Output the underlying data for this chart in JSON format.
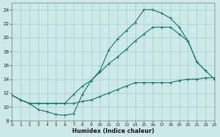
{
  "xlabel": "Humidex (Indice chaleur)",
  "background_color": "#cce8e8",
  "grid_color": "#aad4d4",
  "line_color": "#1a7a6e",
  "curve1_x": [
    0,
    1,
    2,
    3,
    4,
    5,
    6,
    7,
    8,
    9,
    10,
    11,
    12,
    13,
    14,
    15,
    16,
    17,
    18,
    19,
    20,
    21,
    22,
    23
  ],
  "curve1_y": [
    11.7,
    11.0,
    10.5,
    9.6,
    9.3,
    8.9,
    8.8,
    9.0,
    11.8,
    13.8,
    15.2,
    18.2,
    19.8,
    21.0,
    22.2,
    24.0,
    24.0,
    23.5,
    22.8,
    21.5,
    19.5,
    16.5,
    15.2,
    14.0
  ],
  "curve2_x": [
    0,
    1,
    2,
    3,
    4,
    5,
    6,
    7,
    8,
    9,
    10,
    11,
    12,
    13,
    14,
    15,
    16,
    17,
    18,
    19,
    20,
    21,
    22
  ],
  "curve2_y": [
    11.7,
    11.0,
    10.5,
    10.5,
    10.5,
    10.5,
    10.5,
    11.8,
    13.0,
    13.8,
    15.0,
    16.2,
    17.2,
    18.3,
    19.5,
    20.5,
    21.5,
    21.5,
    21.5,
    20.5,
    19.5,
    16.5,
    15.2
  ],
  "curve3_x": [
    0,
    1,
    2,
    3,
    4,
    5,
    6,
    7,
    8,
    9,
    10,
    11,
    12,
    13,
    14,
    15,
    16,
    17,
    18,
    19,
    20,
    21,
    22,
    23
  ],
  "curve3_y": [
    11.7,
    11.0,
    10.5,
    10.5,
    10.5,
    10.5,
    10.5,
    10.5,
    10.8,
    11.0,
    11.5,
    12.0,
    12.5,
    13.0,
    13.5,
    13.5,
    13.5,
    13.5,
    13.5,
    13.8,
    14.0,
    14.0,
    14.2,
    14.2
  ],
  "xlim": [
    0,
    23
  ],
  "ylim": [
    8,
    25
  ],
  "yticks": [
    8,
    10,
    12,
    14,
    16,
    18,
    20,
    22,
    24
  ],
  "xticks": [
    0,
    1,
    2,
    3,
    4,
    5,
    6,
    7,
    8,
    9,
    10,
    11,
    12,
    13,
    14,
    15,
    16,
    17,
    18,
    19,
    20,
    21,
    22,
    23
  ]
}
